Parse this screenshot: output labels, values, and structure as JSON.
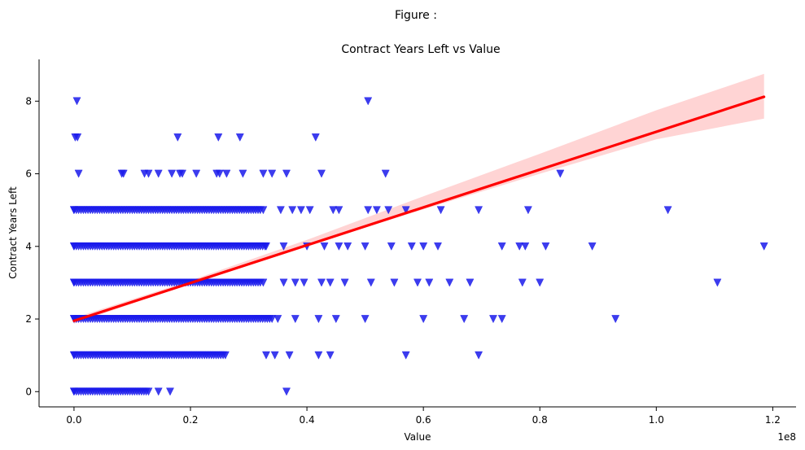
{
  "figure": {
    "suptitle": "Figure :"
  },
  "chart_data": {
    "type": "scatter",
    "title": "Contract Years Left vs Value",
    "xlabel": "Value",
    "ylabel": "Contract Years Left",
    "x_offset_text": "1e8",
    "xlim": [
      -0.06,
      1.24
    ],
    "ylim": [
      -0.42,
      9.15
    ],
    "xticks": [
      0.0,
      0.2,
      0.4,
      0.6,
      0.8,
      1.0,
      1.2
    ],
    "xtick_labels": [
      "0.0",
      "0.2",
      "0.4",
      "0.6",
      "0.8",
      "1.0",
      "1.2"
    ],
    "yticks": [
      0,
      2,
      4,
      6,
      8
    ],
    "ytick_labels": [
      "0",
      "2",
      "4",
      "6",
      "8"
    ],
    "grid": false,
    "marker": "triangle-down",
    "colors": {
      "points": "#1a1aeb",
      "fit_line": "#ff0000",
      "ci_band": "#ffcccc"
    },
    "fit": {
      "x": [
        0.0,
        1.185
      ],
      "y": [
        1.95,
        8.12
      ]
    },
    "ci_band": {
      "x": [
        0.0,
        0.2,
        0.4,
        0.6,
        0.8,
        1.0,
        1.185
      ],
      "lower": [
        1.87,
        2.98,
        4.02,
        5.02,
        6.0,
        6.95,
        7.52
      ],
      "upper": [
        2.03,
        3.06,
        4.18,
        5.38,
        6.55,
        7.75,
        8.75
      ]
    },
    "series": [
      {
        "values": [
          {
            "x": 0.005,
            "y": 8
          },
          {
            "x": 0.505,
            "y": 8
          },
          {
            "x": 0.002,
            "y": 7
          },
          {
            "x": 0.006,
            "y": 7
          },
          {
            "x": 0.178,
            "y": 7
          },
          {
            "x": 0.248,
            "y": 7
          },
          {
            "x": 0.285,
            "y": 7
          },
          {
            "x": 0.415,
            "y": 7
          },
          {
            "x": 0.008,
            "y": 6
          },
          {
            "x": 0.082,
            "y": 6
          },
          {
            "x": 0.085,
            "y": 6
          },
          {
            "x": 0.121,
            "y": 6
          },
          {
            "x": 0.128,
            "y": 6
          },
          {
            "x": 0.145,
            "y": 6
          },
          {
            "x": 0.168,
            "y": 6
          },
          {
            "x": 0.182,
            "y": 6
          },
          {
            "x": 0.186,
            "y": 6
          },
          {
            "x": 0.21,
            "y": 6
          },
          {
            "x": 0.245,
            "y": 6
          },
          {
            "x": 0.25,
            "y": 6
          },
          {
            "x": 0.262,
            "y": 6
          },
          {
            "x": 0.29,
            "y": 6
          },
          {
            "x": 0.325,
            "y": 6
          },
          {
            "x": 0.34,
            "y": 6
          },
          {
            "x": 0.365,
            "y": 6
          },
          {
            "x": 0.425,
            "y": 6
          },
          {
            "x": 0.535,
            "y": 6
          },
          {
            "x": 0.835,
            "y": 6
          },
          {
            "x": 0.0,
            "y": 5
          },
          {
            "x": 0.325,
            "y": 5
          },
          {
            "x": 0.355,
            "y": 5
          },
          {
            "x": 0.375,
            "y": 5
          },
          {
            "x": 0.39,
            "y": 5
          },
          {
            "x": 0.405,
            "y": 5
          },
          {
            "x": 0.445,
            "y": 5
          },
          {
            "x": 0.455,
            "y": 5
          },
          {
            "x": 0.505,
            "y": 5
          },
          {
            "x": 0.52,
            "y": 5
          },
          {
            "x": 0.54,
            "y": 5
          },
          {
            "x": 0.57,
            "y": 5
          },
          {
            "x": 0.63,
            "y": 5
          },
          {
            "x": 0.695,
            "y": 5
          },
          {
            "x": 0.78,
            "y": 5
          },
          {
            "x": 1.02,
            "y": 5
          },
          {
            "x": 0.0,
            "y": 4
          },
          {
            "x": 0.33,
            "y": 4
          },
          {
            "x": 0.36,
            "y": 4
          },
          {
            "x": 0.4,
            "y": 4
          },
          {
            "x": 0.43,
            "y": 4
          },
          {
            "x": 0.455,
            "y": 4
          },
          {
            "x": 0.47,
            "y": 4
          },
          {
            "x": 0.5,
            "y": 4
          },
          {
            "x": 0.545,
            "y": 4
          },
          {
            "x": 0.58,
            "y": 4
          },
          {
            "x": 0.6,
            "y": 4
          },
          {
            "x": 0.625,
            "y": 4
          },
          {
            "x": 0.735,
            "y": 4
          },
          {
            "x": 0.765,
            "y": 4
          },
          {
            "x": 0.775,
            "y": 4
          },
          {
            "x": 0.81,
            "y": 4
          },
          {
            "x": 0.89,
            "y": 4
          },
          {
            "x": 1.185,
            "y": 4
          },
          {
            "x": 0.0,
            "y": 3
          },
          {
            "x": 0.325,
            "y": 3
          },
          {
            "x": 0.36,
            "y": 3
          },
          {
            "x": 0.38,
            "y": 3
          },
          {
            "x": 0.395,
            "y": 3
          },
          {
            "x": 0.425,
            "y": 3
          },
          {
            "x": 0.44,
            "y": 3
          },
          {
            "x": 0.465,
            "y": 3
          },
          {
            "x": 0.51,
            "y": 3
          },
          {
            "x": 0.55,
            "y": 3
          },
          {
            "x": 0.59,
            "y": 3
          },
          {
            "x": 0.61,
            "y": 3
          },
          {
            "x": 0.645,
            "y": 3
          },
          {
            "x": 0.68,
            "y": 3
          },
          {
            "x": 0.77,
            "y": 3
          },
          {
            "x": 0.8,
            "y": 3
          },
          {
            "x": 1.105,
            "y": 3
          },
          {
            "x": 0.0,
            "y": 2
          },
          {
            "x": 0.35,
            "y": 2
          },
          {
            "x": 0.38,
            "y": 2
          },
          {
            "x": 0.42,
            "y": 2
          },
          {
            "x": 0.45,
            "y": 2
          },
          {
            "x": 0.5,
            "y": 2
          },
          {
            "x": 0.6,
            "y": 2
          },
          {
            "x": 0.67,
            "y": 2
          },
          {
            "x": 0.72,
            "y": 2
          },
          {
            "x": 0.735,
            "y": 2
          },
          {
            "x": 0.93,
            "y": 2
          },
          {
            "x": 0.0,
            "y": 1
          },
          {
            "x": 0.33,
            "y": 1
          },
          {
            "x": 0.345,
            "y": 1
          },
          {
            "x": 0.37,
            "y": 1
          },
          {
            "x": 0.42,
            "y": 1
          },
          {
            "x": 0.44,
            "y": 1
          },
          {
            "x": 0.57,
            "y": 1
          },
          {
            "x": 0.695,
            "y": 1
          },
          {
            "x": 0.0,
            "y": 0
          },
          {
            "x": 0.145,
            "y": 0
          },
          {
            "x": 0.165,
            "y": 0
          },
          {
            "x": 0.365,
            "y": 0
          }
        ],
        "dense_segments": [
          {
            "y": 5,
            "x_range": [
              0.0,
              0.32
            ]
          },
          {
            "y": 4,
            "x_range": [
              0.0,
              0.33
            ]
          },
          {
            "y": 3,
            "x_range": [
              0.0,
              0.32
            ]
          },
          {
            "y": 2,
            "x_range": [
              0.0,
              0.34
            ]
          },
          {
            "y": 1,
            "x_range": [
              0.0,
              0.26
            ]
          },
          {
            "y": 0,
            "x_range": [
              0.0,
              0.13
            ]
          }
        ]
      }
    ]
  }
}
